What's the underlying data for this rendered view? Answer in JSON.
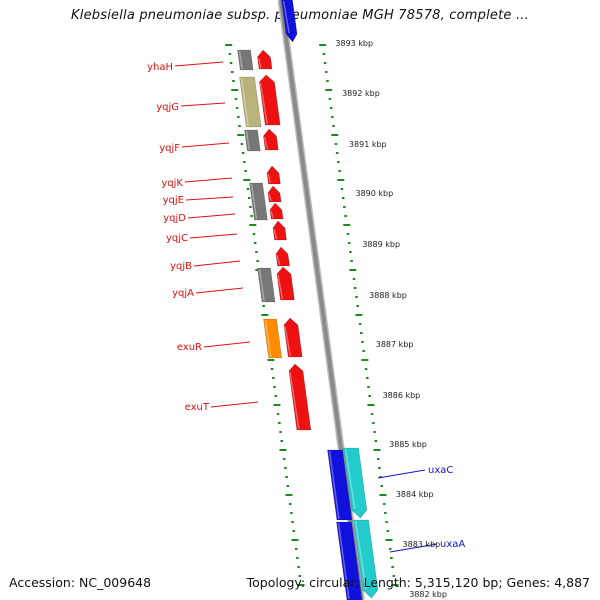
{
  "title": "Klebsiella pneumoniae subsp. pneumoniae MGH 78578, complete ...",
  "accession": "Accession: NC_009648",
  "topology": "Topology: circular; Length: 5,315,120 bp; Genes: 4,887",
  "colors": {
    "axis_tick": "#1e8a1e",
    "backbone": "#8a8a8a",
    "forward_gene": "#ee1111",
    "forward_label": "#dd1111",
    "reverse_gene": "#1111dd",
    "reverse_label": "#1111cc",
    "cds_grey": "#777777",
    "cds_olive": "#b9b27a",
    "cds_orange": "#ff8c00",
    "cds_cyan": "#22cccc"
  },
  "kbp_labels": [
    "3893 kbp",
    "3892 kbp",
    "3891 kbp",
    "3890 kbp",
    "3889 kbp",
    "3888 kbp",
    "3887 kbp",
    "3886 kbp",
    "3885 kbp",
    "3884 kbp",
    "3883 kbp",
    "3882 kbp"
  ],
  "gene_labels": [
    "yhaH",
    "yqjG",
    "yqjF",
    "yqjK",
    "yqjE",
    "yqjD",
    "yqjC",
    "yqjB",
    "yqjA",
    "exuR",
    "exuT",
    "uxaC",
    "uxaA"
  ]
}
